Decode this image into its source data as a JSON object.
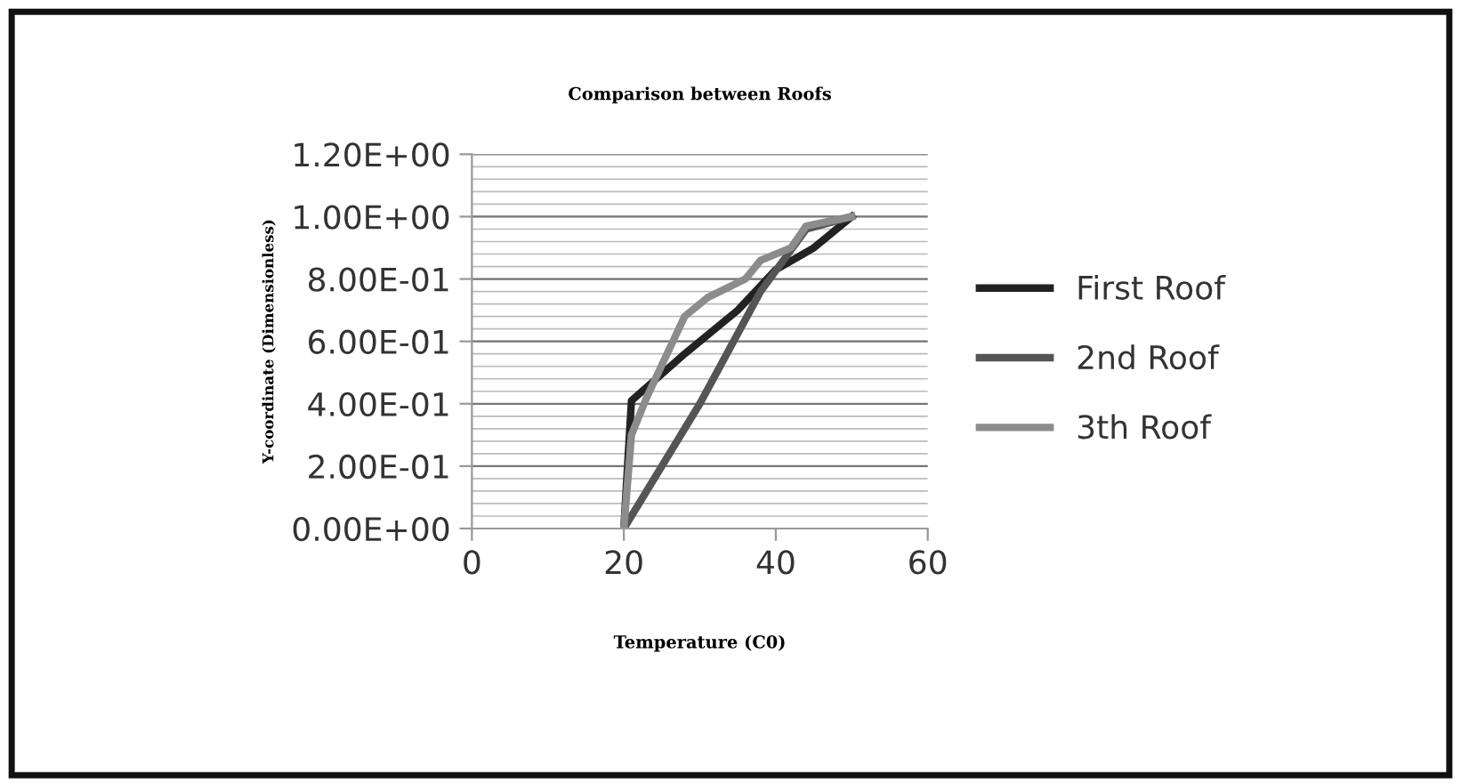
{
  "chart_data": {
    "type": "line",
    "title": "Comparison between Roofs",
    "xlabel": "Temperature (C0)",
    "ylabel": "Y-coordinate (Dimensionless)",
    "xlim": [
      0,
      60
    ],
    "xticks": [
      0,
      20,
      40,
      60
    ],
    "ylim": [
      0,
      1.2
    ],
    "yticks": [
      {
        "value": 0,
        "label": "0.00E+00"
      },
      {
        "value": 0.2,
        "label": "2.00E-01"
      },
      {
        "value": 0.4,
        "label": "4.00E-01"
      },
      {
        "value": 0.6,
        "label": "6.00E-01"
      },
      {
        "value": 0.8,
        "label": "8.00E-01"
      },
      {
        "value": 1.0,
        "label": "1.00E+00"
      },
      {
        "value": 1.2,
        "label": "1.20E+00"
      }
    ],
    "grid": "y",
    "legend": "right",
    "marker": "none",
    "line_style": "solid",
    "series": [
      {
        "name": "First Roof",
        "color": "#222222",
        "x": [
          20,
          21,
          28,
          35,
          40,
          45,
          50
        ],
        "values": [
          0,
          0.41,
          0.56,
          0.7,
          0.83,
          0.9,
          1.0
        ]
      },
      {
        "name": "2nd Roof",
        "color": "#555555",
        "x": [
          20,
          30,
          38,
          44,
          50
        ],
        "values": [
          0,
          0.4,
          0.76,
          0.96,
          1.0
        ]
      },
      {
        "name": "3th Roof",
        "color": "#8c8c8c",
        "x": [
          20,
          21,
          23,
          28,
          31,
          36,
          38,
          42,
          44,
          50
        ],
        "values": [
          0,
          0.3,
          0.42,
          0.68,
          0.74,
          0.8,
          0.86,
          0.9,
          0.97,
          1.0
        ]
      }
    ]
  }
}
